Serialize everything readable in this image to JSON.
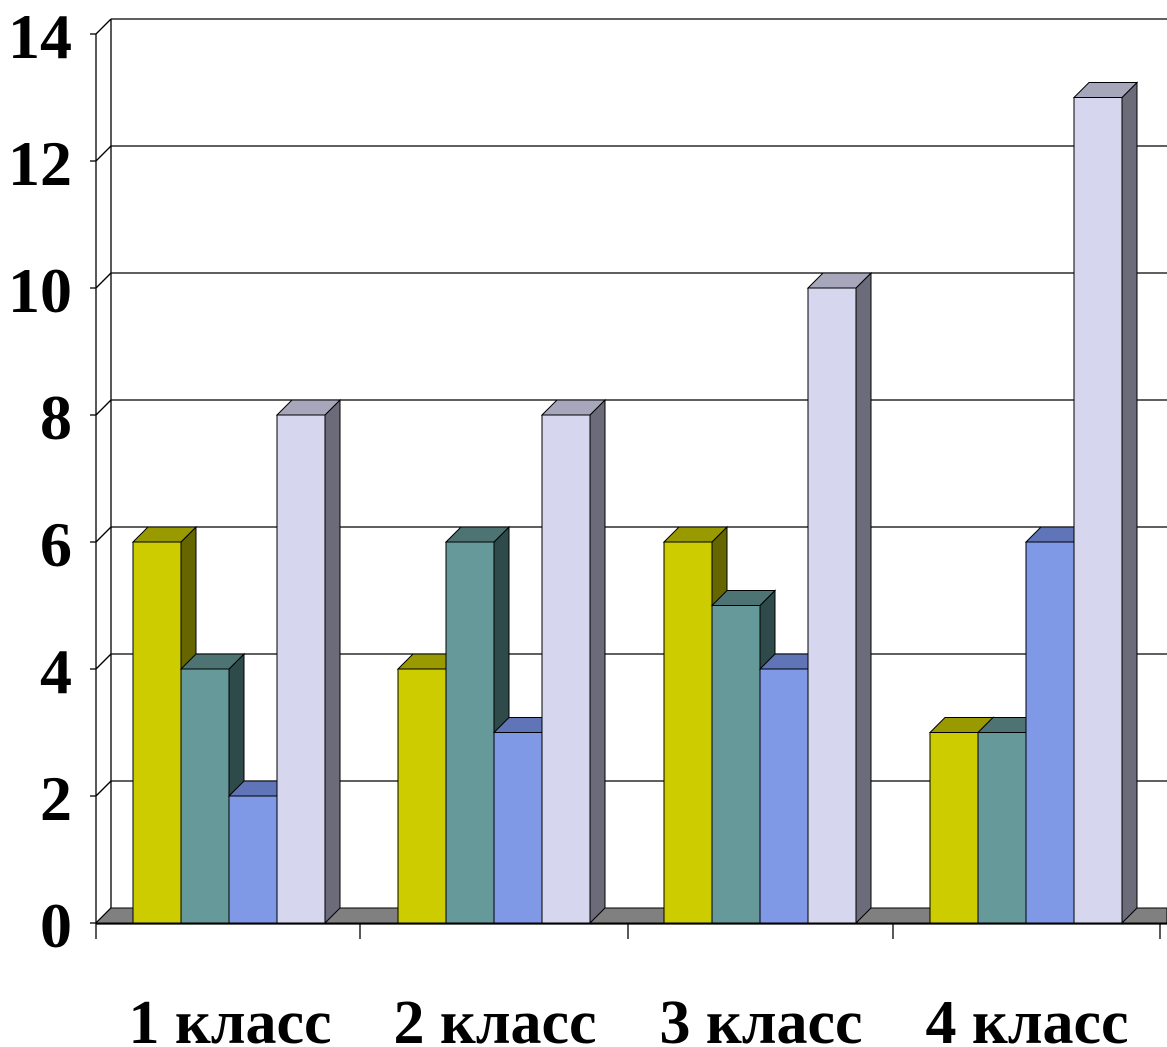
{
  "colors": {
    "background": "#ffffff",
    "gridline": "#000000",
    "floor": "#808080",
    "series": [
      {
        "front": "#cccc00",
        "top": "#999900",
        "side": "#666600"
      },
      {
        "front": "#669999",
        "top": "#4d7373",
        "side": "#2f4a4a"
      },
      {
        "front": "#8099e6",
        "top": "#5f75b8",
        "side": "#3c4d80"
      },
      {
        "front": "#d6d6ee",
        "top": "#a7a7bc",
        "side": "#6b6b7a"
      }
    ]
  },
  "chart_data": {
    "type": "bar",
    "style": "3d-clustered-column",
    "categories": [
      "1 класс",
      "2 класс",
      "3 класс",
      "4 класс"
    ],
    "series": [
      {
        "values": [
          6,
          4,
          6,
          3
        ]
      },
      {
        "values": [
          4,
          6,
          5,
          3
        ]
      },
      {
        "values": [
          2,
          3,
          4,
          6
        ]
      },
      {
        "values": [
          8,
          8,
          10,
          13
        ]
      }
    ],
    "title": "",
    "xlabel": "",
    "ylabel": "",
    "ylim": [
      0,
      14
    ],
    "yticks": [
      "0",
      "2",
      "4",
      "6",
      "8",
      "10",
      "12",
      "14"
    ],
    "grid": true,
    "legend": "none"
  }
}
